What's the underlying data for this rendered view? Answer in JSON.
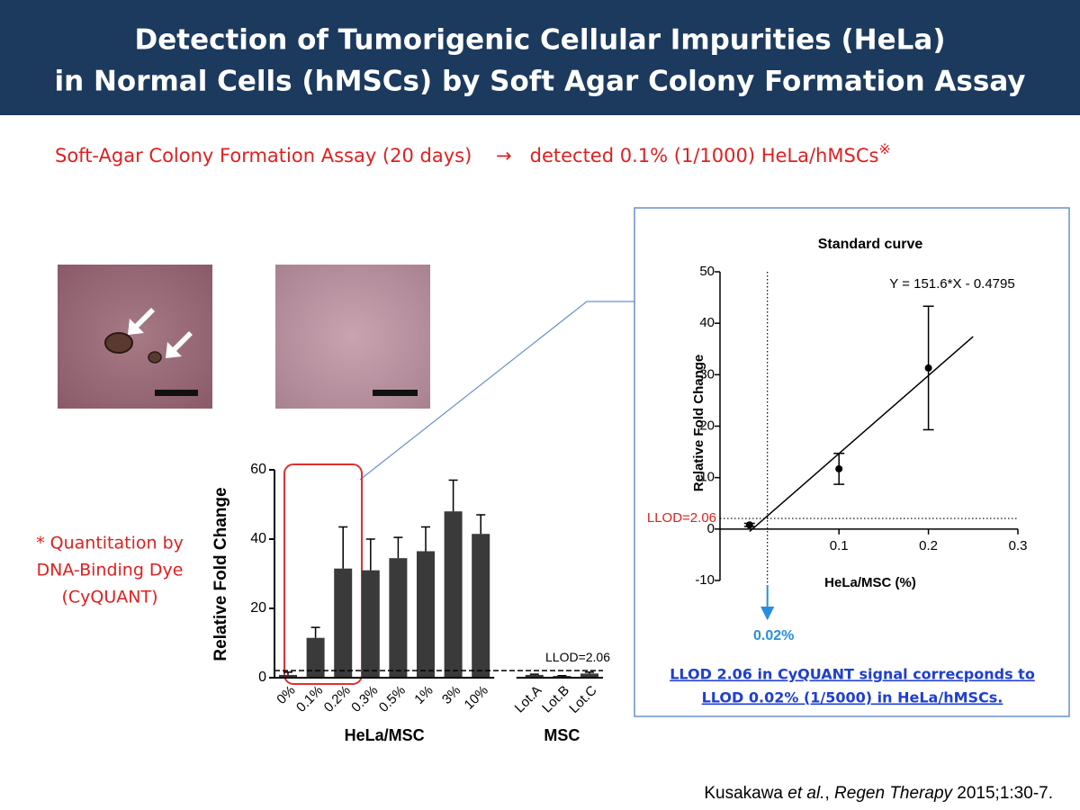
{
  "header": {
    "title_lines": [
      "Detection of Tumorigenic Cellular Impurities (HeLa)",
      "in Normal Cells (hMSCs) by Soft Agar Colony Formation Assay"
    ]
  },
  "subtitle": {
    "assay": "Soft-Agar Colony Formation Assay (20 days)",
    "arrow": "→",
    "result": "detected 0.1% (1/1000) HeLa/hMSCs",
    "mark": "※"
  },
  "note_lines": [
    "* Quantitation by",
    "DNA-Binding Dye",
    "(CyQUANT)"
  ],
  "chart_data": [
    {
      "type": "bar",
      "ylabel": "Relative Fold Change",
      "ylim": [
        0,
        60
      ],
      "yticks": [
        0,
        20,
        40,
        60
      ],
      "color": "#3a3a3a",
      "groups": [
        {
          "name": "HeLa/MSC",
          "categories": [
            "0%",
            "0.1%",
            "0.2%",
            "0.3%",
            "0.5%",
            "1%",
            "3%",
            "10%"
          ],
          "values": [
            0.8,
            11.5,
            31.5,
            31,
            34.5,
            36.5,
            48,
            41.5
          ],
          "errors": [
            0.8,
            3,
            12,
            9,
            6,
            7,
            9,
            5.5
          ]
        },
        {
          "name": "MSC",
          "categories": [
            "Lot.A",
            "Lot.B",
            "Lot.C"
          ],
          "values": [
            0.8,
            0.5,
            1.2
          ],
          "errors": [
            0.2,
            0.1,
            0.4
          ]
        }
      ],
      "llod": {
        "value": 2.06,
        "label": "LLOD=2.06"
      }
    },
    {
      "type": "scatter",
      "title": "Standard curve",
      "xlabel": "HeLa/MSC (%)",
      "ylabel": "Relative Fold Change",
      "xlim": [
        -0.033,
        0.3
      ],
      "ylim": [
        -10,
        50
      ],
      "xticks": [
        0.1,
        0.2,
        0.3
      ],
      "yticks": [
        -10,
        0,
        10,
        20,
        30,
        40,
        50
      ],
      "x": [
        0,
        0.1,
        0.2
      ],
      "values": [
        0.8,
        11.7,
        31.3
      ],
      "errors": [
        0.3,
        3,
        12
      ],
      "color": "#000000",
      "fit": {
        "label": "Y = 151.6*X - 0.4795",
        "slope": 151.6,
        "intercept": -0.4795,
        "xrange": [
          0,
          0.25
        ]
      },
      "llod": {
        "y": 2.06,
        "y_label": "LLOD=2.06",
        "x": 0.02,
        "x_label": "0.02%"
      }
    }
  ],
  "conclusion_lines": [
    "LLOD 2.06 in CyQUANT signal correcponds to",
    "LLOD 0.02% (1/5000) in HeLa/hMSCs."
  ],
  "citation": [
    {
      "text": "Kusakawa ",
      "style": "normal"
    },
    {
      "text": "et al.",
      "style": "italic"
    },
    {
      "text": ", ",
      "style": "normal"
    },
    {
      "text": "Regen Therapy",
      "style": "italic"
    },
    {
      "text": " 2015;1:30-7.",
      "style": "normal"
    }
  ]
}
